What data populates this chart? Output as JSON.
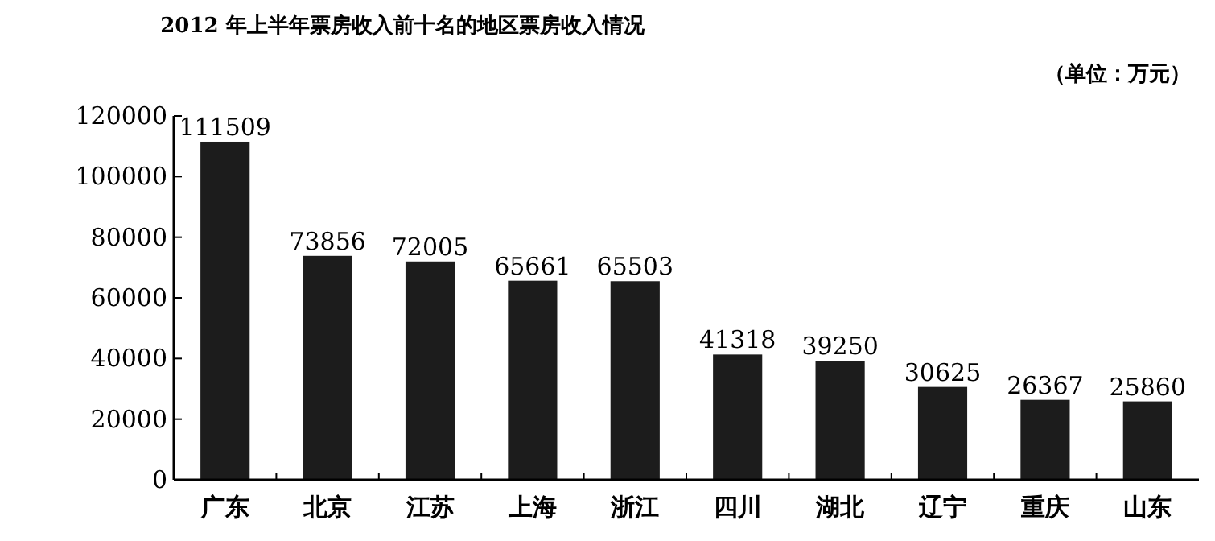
{
  "chart_data": {
    "type": "bar",
    "title": "2012 年上半年票房收入前十名的地区票房收入情况",
    "annotations": [
      "（单位：万元）"
    ],
    "categories": [
      "广东",
      "北京",
      "江苏",
      "上海",
      "浙江",
      "四川",
      "湖北",
      "辽宁",
      "重庆",
      "山东"
    ],
    "values": [
      111509,
      73856,
      72005,
      65661,
      65503,
      41318,
      39250,
      30625,
      26367,
      25860
    ],
    "color": "#1c1c1c",
    "ylim": [
      0,
      120000
    ],
    "yticks": [
      0,
      20000,
      40000,
      60000,
      80000,
      100000,
      120000
    ],
    "data_labels": true,
    "grid": false
  }
}
